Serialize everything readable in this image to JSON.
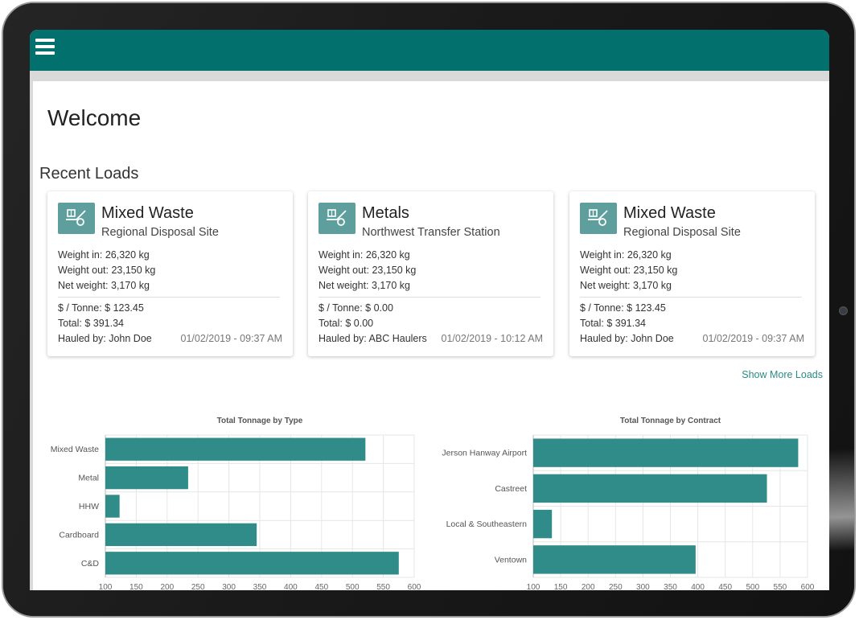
{
  "header": {
    "menu_icon": "hamburger-menu-icon"
  },
  "page": {
    "title": "Welcome",
    "section_title": "Recent Loads",
    "show_more": "Show More Loads"
  },
  "loads": [
    {
      "type": "Mixed Waste",
      "site": "Regional Disposal Site",
      "weight_in": "Weight in: 26,320 kg",
      "weight_out": "Weight out: 23,150 kg",
      "net_weight": "Net weight: 3,170 kg",
      "rate": "$ / Tonne: $ 123.45",
      "total": "Total: $ 391.34",
      "hauled_by": "Hauled by: John Doe",
      "date": "01/02/2019 - 09:37 AM"
    },
    {
      "type": "Metals",
      "site": "Northwest Transfer Station",
      "weight_in": "Weight in: 26,320 kg",
      "weight_out": "Weight out: 23,150 kg",
      "net_weight": "Net weight: 3,170 kg",
      "rate": "$ / Tonne: $ 0.00",
      "total": "Total: $ 0.00",
      "hauled_by": "Hauled by: ABC Haulers",
      "date": "01/02/2019 - 10:12 AM"
    },
    {
      "type": "Mixed Waste",
      "site": "Regional Disposal Site",
      "weight_in": "Weight in: 26,320 kg",
      "weight_out": "Weight out: 23,150 kg",
      "net_weight": "Net weight: 3,170 kg",
      "rate": "$ / Tonne: $ 123.45",
      "total": "Total: $ 391.34",
      "hauled_by": "Hauled by: John Doe",
      "date": "01/02/2019 - 09:37 AM"
    }
  ],
  "colors": {
    "accent": "#02706c",
    "bar": "#2f8c88",
    "link": "#2a8a86"
  },
  "chart_data": [
    {
      "type": "bar",
      "orientation": "horizontal",
      "title": "Total Tonnage by Type",
      "categories": [
        "Mixed Waste",
        "Metal",
        "HHW",
        "Cardboard",
        "C&D"
      ],
      "values": [
        521,
        234,
        123,
        345,
        575
      ],
      "xlim": [
        100,
        600
      ],
      "xticks": [
        100,
        150,
        200,
        250,
        300,
        350,
        400,
        450,
        500,
        550,
        600
      ],
      "grid": true
    },
    {
      "type": "bar",
      "orientation": "horizontal",
      "title": "Total Tonnage by Contract",
      "categories": [
        "Jerson Hanway Airport",
        "Castreet",
        "Local & Southeastern",
        "Ventown"
      ],
      "values": [
        583,
        526,
        134,
        396
      ],
      "xlim": [
        100,
        600
      ],
      "xticks": [
        100,
        150,
        200,
        250,
        300,
        350,
        400,
        450,
        500,
        550,
        600
      ],
      "grid": true
    }
  ]
}
